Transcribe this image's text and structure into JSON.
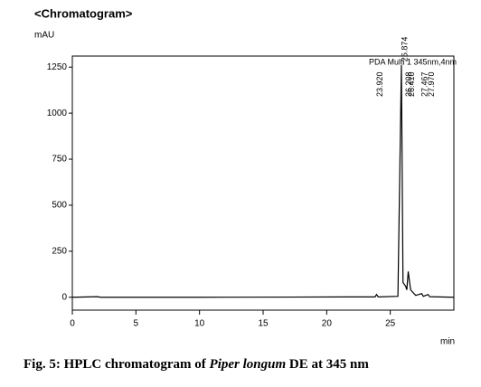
{
  "chart_data": {
    "type": "line",
    "title": "<Chromatogram>",
    "ylabel": "mAU",
    "xlabel": "min",
    "annotation": "PDA Multi 1 345nm,4nm",
    "x": [
      0,
      2,
      2.2,
      10,
      17,
      23.8,
      23.92,
      24.05,
      25.6,
      25.874,
      26.0,
      26.208,
      26.3,
      26.41,
      26.6,
      27.0,
      27.467,
      27.6,
      27.97,
      28.1,
      30
    ],
    "values": [
      0,
      3,
      0,
      0,
      1,
      2,
      15,
      2,
      5,
      1260,
      80,
      60,
      40,
      140,
      40,
      10,
      20,
      5,
      15,
      3,
      0
    ],
    "color": "#000000",
    "peak_labels": [
      "23.920",
      "25.874",
      "26.208",
      "26.410",
      "27.467",
      "27.970"
    ],
    "xlim": [
      0,
      30
    ],
    "ylim": [
      -70,
      1310
    ],
    "xticks": [
      0,
      5,
      10,
      15,
      20,
      25
    ],
    "yticks": [
      0,
      250,
      500,
      750,
      1000,
      1250
    ]
  },
  "caption": [
    "Fig. 5: HPLC chromatogram of ",
    "Piper longum",
    " DE at 345 nm"
  ]
}
